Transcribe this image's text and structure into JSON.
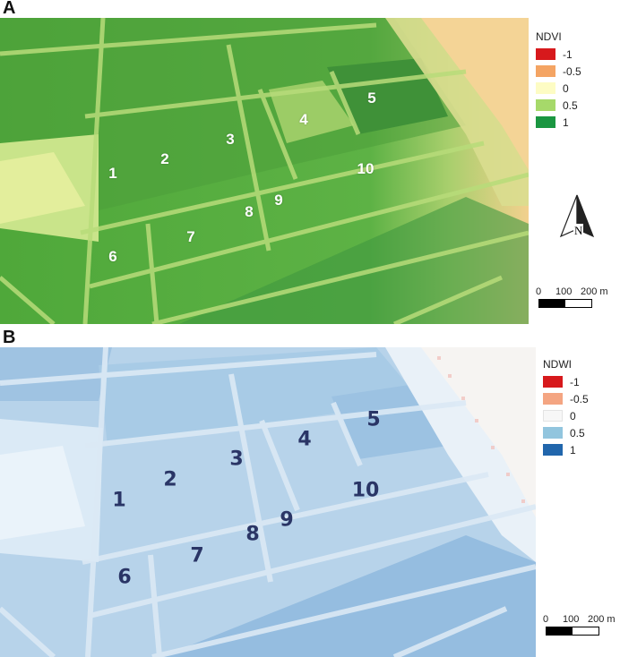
{
  "panels": [
    {
      "letter": "A",
      "index_name": "NDVI",
      "legend": [
        {
          "value": "-1",
          "color": "#d7191c"
        },
        {
          "value": "-0.5",
          "color": "#f4a463"
        },
        {
          "value": "0",
          "color": "#fdfcc4"
        },
        {
          "value": "0.5",
          "color": "#a6d96a"
        },
        {
          "value": "1",
          "color": "#1a9641"
        }
      ],
      "field_labels": [
        "1",
        "2",
        "3",
        "4",
        "5",
        "6",
        "7",
        "8",
        "9",
        "10"
      ],
      "scale_labels": [
        "0",
        "100",
        "200 m"
      ]
    },
    {
      "letter": "B",
      "index_name": "NDWI",
      "legend": [
        {
          "value": "-1",
          "color": "#d7191c"
        },
        {
          "value": "-0.5",
          "color": "#f4a582"
        },
        {
          "value": "0",
          "color": "#f7f7f7"
        },
        {
          "value": "0.5",
          "color": "#92c5de"
        },
        {
          "value": "1",
          "color": "#2166ac"
        }
      ],
      "field_labels": [
        "1",
        "2",
        "3",
        "4",
        "5",
        "6",
        "7",
        "8",
        "9",
        "10"
      ],
      "scale_labels": [
        "0",
        "100",
        "200 m"
      ]
    }
  ],
  "north_arrow": {
    "label": "N"
  }
}
